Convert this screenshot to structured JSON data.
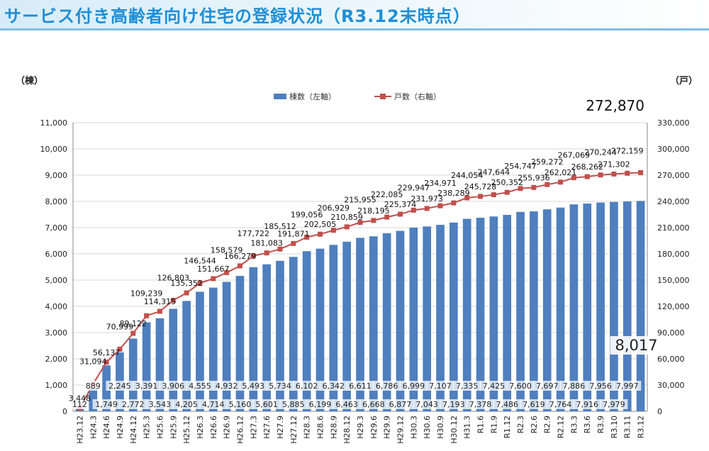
{
  "page": {
    "title": "サービス付き高齢者向け住宅の登録状況（R3.12末時点）"
  },
  "chart_data": {
    "type": "bar",
    "combo": "bar + line (dual axis)",
    "title": "サービス付き高齢者向け住宅の登録状況（R3.12末時点）",
    "left_axis_label": "（棟）",
    "right_axis_label": "（戸）",
    "left_ylim": [
      0,
      11000
    ],
    "right_ylim": [
      0,
      330000
    ],
    "left_ticks": [
      "0",
      "1,000",
      "2,000",
      "3,000",
      "4,000",
      "5,000",
      "6,000",
      "7,000",
      "8,000",
      "9,000",
      "10,000",
      "11,000"
    ],
    "right_ticks": [
      "0",
      "30,000",
      "60,000",
      "90,000",
      "120,000",
      "150,000",
      "180,000",
      "210,000",
      "240,000",
      "270,000",
      "300,000",
      "330,000"
    ],
    "grid": true,
    "legend_position": "top-center",
    "colors": {
      "bar": "#4f7fbe",
      "line": "#c0504d",
      "title": "#1f8fd6"
    },
    "categories": [
      "H23.12",
      "H24.3",
      "H24.6",
      "H24.9",
      "H24.12",
      "H25.3",
      "H25.6",
      "H25.9",
      "H25.12",
      "H26.3",
      "H26.6",
      "H26.9",
      "H26.12",
      "H27.3",
      "H27.6",
      "H27.9",
      "H27.12",
      "H28.3",
      "H28.6",
      "H28.9",
      "H28.12",
      "H29.3",
      "H29.6",
      "H29.9",
      "H29.12",
      "H30.3",
      "H30.6",
      "H30.9",
      "H30.12",
      "H31.3",
      "R1.6",
      "R1.9",
      "R1.12",
      "R2.3",
      "R2.6",
      "R2.9",
      "R2.12",
      "R3.3",
      "R3.6",
      "R3.9",
      "R3.10",
      "R3.11",
      "R3.12"
    ],
    "series": [
      {
        "name": "棟数（左軸）",
        "type": "bar",
        "axis": "left",
        "values": [
          112,
          889,
          1749,
          2245,
          2772,
          3391,
          3543,
          3906,
          4205,
          4555,
          4714,
          4932,
          5160,
          5493,
          5601,
          5734,
          5885,
          6102,
          6199,
          6342,
          6463,
          6611,
          6668,
          6786,
          6877,
          6999,
          7043,
          7107,
          7193,
          7335,
          7378,
          7425,
          7486,
          7600,
          7619,
          7697,
          7764,
          7886,
          7916,
          7956,
          7979,
          7997,
          8017
        ],
        "labels": [
          "112",
          "889",
          "1,749",
          "2,245",
          "2,772",
          "3,391",
          "3,543",
          "3,906",
          "4,205",
          "4,555",
          "4,714",
          "4,932",
          "5,160",
          "5,493",
          "5,601",
          "5,734",
          "5,885",
          "6,102",
          "6,199",
          "6,342",
          "6,463",
          "6,611",
          "6,668",
          "6,786",
          "6,877",
          "6,999",
          "7,043",
          "7,107",
          "7,193",
          "7,335",
          "7,378",
          "7,425",
          "7,486",
          "7,600",
          "7,619",
          "7,697",
          "7,764",
          "7,886",
          "7,916",
          "7,956",
          "7,979",
          "7,997",
          "8,017"
        ]
      },
      {
        "name": "戸数（右軸）",
        "type": "line",
        "axis": "right",
        "values": [
          3448,
          31094,
          56137,
          70999,
          89122,
          109239,
          114315,
          126803,
          135352,
          146544,
          151667,
          158579,
          166279,
          177722,
          181083,
          185512,
          191871,
          199056,
          202505,
          206929,
          210859,
          215955,
          218195,
          222085,
          225374,
          229947,
          231973,
          234971,
          238289,
          244054,
          245728,
          247644,
          250352,
          254747,
          255936,
          259272,
          262021,
          267069,
          268262,
          270244,
          271302,
          272159,
          272870
        ],
        "labels": [
          "3,448",
          "31,094",
          "56,137",
          "70,999",
          "89,122",
          "109,239",
          "114,315",
          "126,803",
          "135,352",
          "146,544",
          "151,667",
          "158,579",
          "166,279",
          "177,722",
          "181,083",
          "185,512",
          "191,871",
          "199,056",
          "202,505",
          "206,929",
          "210,859",
          "215,955",
          "218,195",
          "222,085",
          "225,374",
          "229,947",
          "231,973",
          "234,971",
          "238,289",
          "244,054",
          "245,728",
          "247,644",
          "250,352",
          "254,747",
          "255,936",
          "259,272",
          "262,021",
          "267,069",
          "268,262",
          "270,244",
          "271,302",
          "272,159",
          "272,870"
        ]
      }
    ]
  }
}
